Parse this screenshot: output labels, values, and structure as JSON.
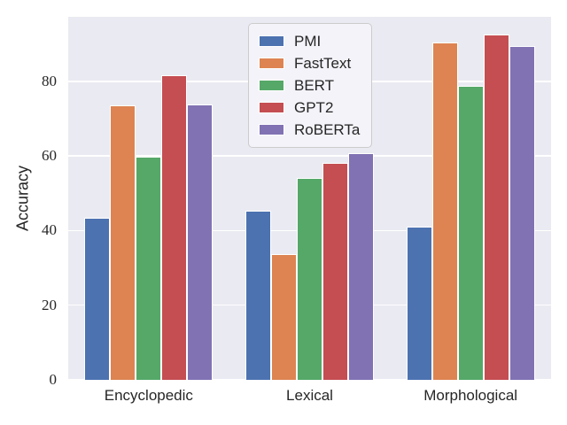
{
  "chart_data": {
    "type": "bar",
    "title": "",
    "categories": [
      "Encyclopedic",
      "Lexical",
      "Morphological"
    ],
    "series": [
      {
        "name": "PMI",
        "color": "#4C72B0",
        "values": [
          43.4,
          45.4,
          41.0
        ]
      },
      {
        "name": "FastText",
        "color": "#DD8452",
        "values": [
          73.5,
          33.6,
          90.4
        ]
      },
      {
        "name": "BERT",
        "color": "#55A868",
        "values": [
          59.9,
          54.0,
          78.7
        ]
      },
      {
        "name": "GPT2",
        "color": "#C44E52",
        "values": [
          81.7,
          58.1,
          92.5
        ]
      },
      {
        "name": "RoBERTa",
        "color": "#8172B3",
        "values": [
          73.7,
          60.7,
          89.4
        ]
      }
    ],
    "xlabel": "",
    "ylabel": "Accuracy",
    "yticks": [
      "0",
      "20",
      "40",
      "60",
      "80"
    ],
    "ytick_values": [
      0,
      20,
      40,
      60,
      80
    ],
    "ylim": [
      0,
      97.3
    ],
    "grid": true,
    "legend_position": "upper center",
    "colors": {
      "plot_background": "#EAEAF2",
      "gridline": "#FFFFFF",
      "text": "#262626",
      "bar_edge": "#FFFFFF",
      "legend_background": "#F3F3F9",
      "legend_border": "#CCCCCC"
    }
  }
}
